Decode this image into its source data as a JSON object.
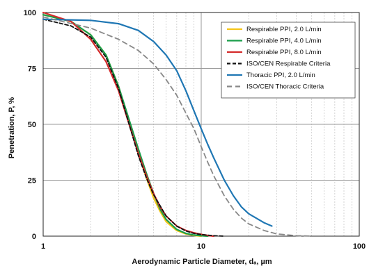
{
  "chart_data": {
    "type": "line",
    "x_scale": "log",
    "xlim": [
      1,
      100
    ],
    "ylim": [
      0,
      100
    ],
    "x_ticks": [
      "1",
      "10",
      "100"
    ],
    "y_ticks": [
      "0",
      "25",
      "50",
      "75",
      "100"
    ],
    "xlabel": "Aerodynamic Particle Diameter, dₐ, µm",
    "ylabel": "Penetration, P, %",
    "grid": true,
    "legend_position": "top-right",
    "series": [
      {
        "name": "Respirable PPI, 2.0 L/min",
        "color": "#f5c518",
        "dash": "solid",
        "x": [
          1,
          1.5,
          2,
          2.5,
          3,
          3.5,
          4,
          4.5,
          5,
          5.5,
          6,
          7,
          8,
          9,
          10
        ],
        "y": [
          99,
          96,
          90,
          81,
          67,
          51,
          37,
          26,
          17,
          11,
          6.5,
          2.5,
          1,
          0.3,
          0
        ]
      },
      {
        "name": "Respirable PPI, 4.0 L/min",
        "color": "#1a9e4a",
        "dash": "solid",
        "x": [
          1,
          1.5,
          2,
          2.5,
          3,
          3.5,
          4,
          4.5,
          5,
          5.5,
          6,
          7,
          8,
          9,
          10,
          11
        ],
        "y": [
          99,
          96,
          90,
          81,
          67,
          52,
          39,
          28,
          19,
          12,
          7.5,
          3,
          1.2,
          0.5,
          0.2,
          0
        ]
      },
      {
        "name": "Respirable PPI, 8.0 L/min",
        "color": "#d42a2a",
        "dash": "solid",
        "x": [
          1,
          1.5,
          2,
          2.5,
          3,
          3.5,
          4,
          4.5,
          5,
          5.5,
          6,
          7,
          8,
          9,
          10,
          11,
          12
        ],
        "y": [
          100,
          96,
          88,
          78,
          65,
          50,
          37,
          27,
          19,
          13,
          9,
          4.5,
          2.5,
          1.5,
          0.8,
          0.3,
          0
        ]
      },
      {
        "name": "ISO/CEN Respirable Criteria",
        "color": "#111111",
        "dash": "dash",
        "x": [
          1,
          1.5,
          2,
          2.5,
          3,
          3.5,
          4,
          4.5,
          5,
          6,
          7,
          8,
          9,
          10,
          12,
          14
        ],
        "y": [
          97,
          94,
          89,
          80,
          66,
          50,
          36,
          26,
          18.5,
          9,
          4.5,
          2.3,
          1.2,
          0.7,
          0.2,
          0
        ]
      },
      {
        "name": "Thoracic PPI, 2.0 L/min",
        "color": "#1f77b4",
        "dash": "solid",
        "x": [
          1,
          2,
          3,
          4,
          5,
          6,
          7,
          8,
          9,
          10,
          11,
          12,
          14,
          16,
          18,
          20,
          25,
          28
        ],
        "y": [
          97,
          96.5,
          95,
          92,
          87,
          81,
          74,
          65,
          56,
          48,
          41,
          35,
          25,
          18,
          13,
          10,
          6,
          4.5
        ]
      },
      {
        "name": "ISO/CEN Thoracic Criteria",
        "color": "#888888",
        "dash": "dash",
        "x": [
          1,
          2,
          3,
          4,
          5,
          6,
          7,
          8,
          9,
          10,
          11,
          12,
          14,
          16,
          18,
          20,
          25,
          30,
          40,
          50
        ],
        "y": [
          98,
          93,
          88,
          83,
          77,
          70,
          63,
          55,
          48,
          40,
          33,
          27,
          18,
          12,
          8,
          5.5,
          2.5,
          1,
          0.2,
          0
        ]
      }
    ]
  }
}
